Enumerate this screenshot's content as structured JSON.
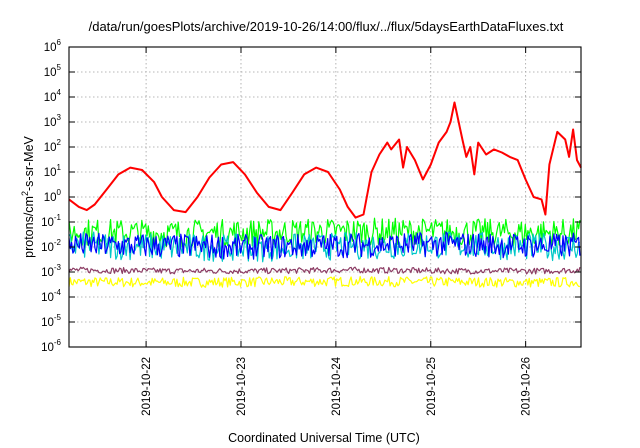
{
  "chart_data": {
    "type": "line",
    "title": "/data/run/goesPlots/archive/2019-10-26/14:00/flux/../flux/5daysEarthDataFluxes.txt",
    "xlabel": "Coordinated Universal Time (UTC)",
    "ylabel_prefix": "protons/cm",
    "ylabel_sup": "2",
    "ylabel_suffix": "-s-sr-MeV",
    "y_scale": "log",
    "ylim_exp": [
      -6,
      6
    ],
    "y_ticks": [
      {
        "base": "10",
        "exp": "-6",
        "value": 1e-06
      },
      {
        "base": "10",
        "exp": "-5",
        "value": 1e-05
      },
      {
        "base": "10",
        "exp": "-4",
        "value": 0.0001
      },
      {
        "base": "10",
        "exp": "-3",
        "value": 0.001
      },
      {
        "base": "10",
        "exp": "-2",
        "value": 0.01
      },
      {
        "base": "10",
        "exp": "-1",
        "value": 0.1
      },
      {
        "base": "10",
        "exp": "0",
        "value": 1
      },
      {
        "base": "10",
        "exp": "1",
        "value": 10
      },
      {
        "base": "10",
        "exp": "2",
        "value": 100
      },
      {
        "base": "10",
        "exp": "3",
        "value": 1000
      },
      {
        "base": "10",
        "exp": "4",
        "value": 10000
      },
      {
        "base": "10",
        "exp": "5",
        "value": 100000
      },
      {
        "base": "10",
        "exp": "6",
        "value": 1000000
      }
    ],
    "x_range": [
      "2019-10-21T04:30",
      "2019-10-26T14:00"
    ],
    "x_ticks": [
      "2019-10-22",
      "2019-10-23",
      "2019-10-24",
      "2019-10-25",
      "2019-10-26"
    ],
    "grid": true,
    "series": [
      {
        "color": "#ff0000",
        "x": [
          "2019-10-21T04:30",
          "2019-10-21T07:00",
          "2019-10-21T09:00",
          "2019-10-21T11:00",
          "2019-10-21T14:00",
          "2019-10-21T17:00",
          "2019-10-21T20:00",
          "2019-10-21T23:00",
          "2019-10-22T02:00",
          "2019-10-22T04:00",
          "2019-10-22T07:00",
          "2019-10-22T10:00",
          "2019-10-22T13:00",
          "2019-10-22T16:00",
          "2019-10-22T19:00",
          "2019-10-22T22:00",
          "2019-10-23T01:00",
          "2019-10-23T04:00",
          "2019-10-23T07:00",
          "2019-10-23T10:00",
          "2019-10-23T13:00",
          "2019-10-23T16:00",
          "2019-10-23T19:00",
          "2019-10-23T22:00",
          "2019-10-24T01:00",
          "2019-10-24T03:00",
          "2019-10-24T05:00",
          "2019-10-24T07:00",
          "2019-10-24T09:00",
          "2019-10-24T11:00",
          "2019-10-24T13:00",
          "2019-10-24T14:00",
          "2019-10-24T16:00",
          "2019-10-24T17:00",
          "2019-10-24T18:00",
          "2019-10-24T20:00",
          "2019-10-24T22:00",
          "2019-10-25T00:00",
          "2019-10-25T02:00",
          "2019-10-25T04:00",
          "2019-10-25T05:00",
          "2019-10-25T06:00",
          "2019-10-25T08:00",
          "2019-10-25T09:00",
          "2019-10-25T10:00",
          "2019-10-25T11:00",
          "2019-10-25T12:00",
          "2019-10-25T14:00",
          "2019-10-25T16:00",
          "2019-10-25T18:00",
          "2019-10-25T20:00",
          "2019-10-25T22:00",
          "2019-10-26T00:00",
          "2019-10-26T02:00",
          "2019-10-26T04:00",
          "2019-10-26T05:00",
          "2019-10-26T06:00",
          "2019-10-26T08:00",
          "2019-10-26T10:00",
          "2019-10-26T11:00",
          "2019-10-26T12:00",
          "2019-10-26T13:00",
          "2019-10-26T14:00"
        ],
        "values": [
          0.8,
          0.4,
          0.3,
          0.5,
          2,
          8,
          15,
          12,
          4,
          1,
          0.3,
          0.25,
          1,
          6,
          20,
          25,
          8,
          1.5,
          0.4,
          0.3,
          1.5,
          8,
          15,
          10,
          2,
          0.4,
          0.15,
          0.2,
          10,
          50,
          150,
          80,
          200,
          15,
          100,
          30,
          5,
          20,
          150,
          400,
          1000,
          6000,
          200,
          40,
          100,
          8,
          150,
          50,
          80,
          60,
          40,
          30,
          5,
          1,
          0.8,
          0.2,
          20,
          400,
          200,
          40,
          500,
          30,
          15
        ]
      },
      {
        "color": "#00ff00",
        "x": [
          "2019-10-21T04:30",
          "2019-10-22T04:30",
          "2019-10-23T04:30",
          "2019-10-24T04:30",
          "2019-10-25T04:30",
          "2019-10-26T04:30",
          "2019-10-26T14:00"
        ],
        "values": [
          0.04,
          0.035,
          0.038,
          0.042,
          0.04,
          0.036,
          0.04
        ]
      },
      {
        "color": "#00c8c8",
        "x": [
          "2019-10-21T04:30",
          "2019-10-22T04:30",
          "2019-10-23T04:30",
          "2019-10-24T04:30",
          "2019-10-25T04:30",
          "2019-10-26T04:30",
          "2019-10-26T14:00"
        ],
        "values": [
          0.012,
          0.01,
          0.009,
          0.011,
          0.012,
          0.01,
          0.011
        ]
      },
      {
        "color": "#0000ff",
        "x": [
          "2019-10-21T04:30",
          "2019-10-22T04:30",
          "2019-10-23T04:30",
          "2019-10-24T04:30",
          "2019-10-25T04:30",
          "2019-10-26T04:30",
          "2019-10-26T14:00"
        ],
        "values": [
          0.012,
          0.011,
          0.01,
          0.012,
          0.013,
          0.011,
          0.012
        ]
      },
      {
        "color": "#8c3c64",
        "x": [
          "2019-10-21T04:30",
          "2019-10-22T04:30",
          "2019-10-23T04:30",
          "2019-10-24T04:30",
          "2019-10-25T04:30",
          "2019-10-26T04:30",
          "2019-10-26T14:00"
        ],
        "values": [
          0.0012,
          0.0011,
          0.0011,
          0.0012,
          0.0011,
          0.0011,
          0.0012
        ]
      },
      {
        "color": "#ffff00",
        "x": [
          "2019-10-21T04:30",
          "2019-10-22T04:30",
          "2019-10-23T04:30",
          "2019-10-24T04:30",
          "2019-10-25T04:30",
          "2019-10-26T04:30",
          "2019-10-26T14:00"
        ],
        "values": [
          0.0004,
          0.00038,
          0.0004,
          0.00042,
          0.0004,
          0.00038,
          0.0004
        ]
      }
    ]
  }
}
